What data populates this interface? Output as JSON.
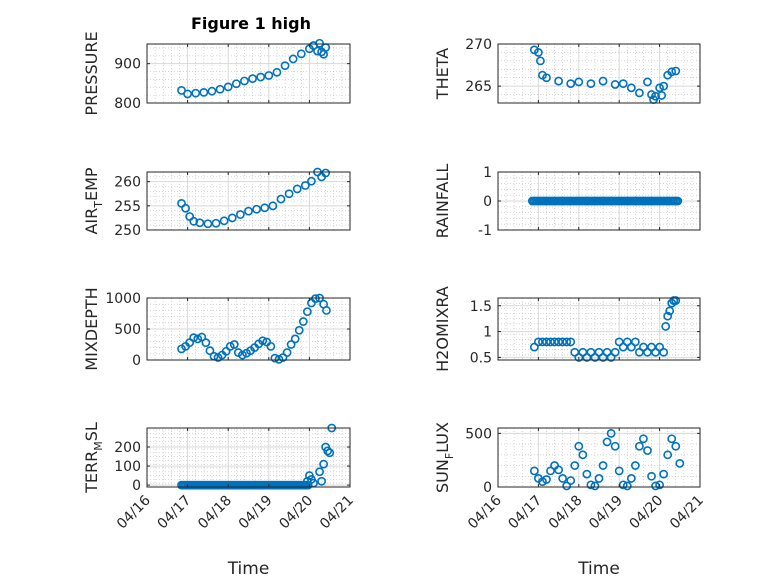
{
  "figure": {
    "title": "Figure 1 high"
  },
  "colors": {
    "marker": "#0072BD",
    "axis": "#262626",
    "grid": "#d9d9d9",
    "minor_grid": "#bdbdbd"
  },
  "chart_data": [
    {
      "type": "scatter",
      "ylabel": "PRESSURE",
      "xlim": [
        "04/16",
        "04/21"
      ],
      "ylim": [
        800,
        950
      ],
      "yticks": [
        800,
        900
      ],
      "ytick_labels": [
        "800",
        "900"
      ],
      "xticks": [
        "04/16",
        "04/17",
        "04/18",
        "04/19",
        "04/20",
        "04/21"
      ],
      "grid": true,
      "minor_grid": true,
      "show_xticklabels": false,
      "series": [
        {
          "x": [
            0.85,
            1.0,
            1.2,
            1.4,
            1.6,
            1.8,
            2.0,
            2.2,
            2.4,
            2.6,
            2.8,
            3.0,
            3.2,
            3.4,
            3.6,
            3.8,
            4.0,
            4.1,
            4.2,
            4.25,
            4.3,
            4.35,
            4.4
          ],
          "y": [
            832,
            823,
            825,
            827,
            830,
            835,
            841,
            849,
            856,
            862,
            866,
            870,
            878,
            895,
            912,
            925,
            938,
            946,
            932,
            952,
            930,
            924,
            941
          ]
        }
      ]
    },
    {
      "type": "scatter",
      "ylabel": "THETA",
      "xlim": [
        "04/16",
        "04/21"
      ],
      "ylim": [
        263,
        270
      ],
      "yticks": [
        265,
        270
      ],
      "ytick_labels": [
        "265",
        "270"
      ],
      "xticks": [
        "04/16",
        "04/17",
        "04/18",
        "04/19",
        "04/20",
        "04/21"
      ],
      "grid": true,
      "minor_grid": true,
      "show_xticklabels": false,
      "series": [
        {
          "x": [
            0.9,
            1.0,
            1.05,
            1.1,
            1.2,
            1.5,
            1.8,
            2.0,
            2.3,
            2.6,
            2.9,
            3.1,
            3.3,
            3.5,
            3.7,
            3.8,
            3.85,
            3.9,
            4.0,
            4.05,
            4.1,
            4.2,
            4.3,
            4.4
          ],
          "y": [
            269.3,
            269.0,
            268.0,
            266.3,
            266.0,
            265.6,
            265.3,
            265.5,
            265.3,
            265.6,
            265.2,
            265.3,
            264.8,
            264.2,
            265.5,
            264.0,
            263.4,
            263.8,
            264.8,
            263.9,
            265.0,
            266.3,
            266.7,
            266.8
          ]
        }
      ]
    },
    {
      "type": "scatter",
      "ylabel": "AIR_TEMP",
      "xlim": [
        "04/16",
        "04/21"
      ],
      "ylim": [
        250,
        262
      ],
      "yticks": [
        250,
        255,
        260
      ],
      "ytick_labels": [
        "250",
        "255",
        "260"
      ],
      "xticks": [
        "04/16",
        "04/17",
        "04/18",
        "04/19",
        "04/20",
        "04/21"
      ],
      "grid": true,
      "minor_grid": true,
      "show_xticklabels": false,
      "series": [
        {
          "x": [
            0.85,
            0.95,
            1.05,
            1.15,
            1.3,
            1.5,
            1.7,
            1.9,
            2.1,
            2.3,
            2.5,
            2.7,
            2.9,
            3.1,
            3.3,
            3.5,
            3.7,
            3.9,
            4.05,
            4.2,
            4.3,
            4.4
          ],
          "y": [
            255.5,
            254.5,
            252.8,
            251.8,
            251.5,
            251.3,
            251.4,
            251.9,
            252.5,
            253.2,
            253.9,
            254.3,
            254.6,
            255.0,
            256.4,
            257.5,
            258.5,
            259.2,
            260.1,
            262.0,
            261.0,
            261.8
          ]
        }
      ]
    },
    {
      "type": "scatter",
      "ylabel": "RAINFALL",
      "xlim": [
        "04/16",
        "04/21"
      ],
      "ylim": [
        -1,
        1
      ],
      "yticks": [
        -1,
        0,
        1
      ],
      "ytick_labels": [
        "-1",
        "0",
        "1"
      ],
      "xticks": [
        "04/16",
        "04/17",
        "04/18",
        "04/19",
        "04/20",
        "04/21"
      ],
      "grid": true,
      "minor_grid": true,
      "show_xticklabels": false,
      "series": [
        {
          "x_from": 0.85,
          "x_to": 4.45,
          "x_step": 0.04,
          "value": 0
        }
      ]
    },
    {
      "type": "scatter",
      "ylabel": "MIXDEPTH",
      "xlim": [
        "04/16",
        "04/21"
      ],
      "ylim": [
        0,
        1000
      ],
      "yticks": [
        0,
        500,
        1000
      ],
      "ytick_labels": [
        "0",
        "500",
        "1000"
      ],
      "xticks": [
        "04/16",
        "04/17",
        "04/18",
        "04/19",
        "04/20",
        "04/21"
      ],
      "grid": true,
      "minor_grid": true,
      "show_xticklabels": false,
      "series": [
        {
          "x": [
            0.85,
            0.95,
            1.05,
            1.15,
            1.25,
            1.35,
            1.45,
            1.55,
            1.65,
            1.75,
            1.85,
            1.95,
            2.05,
            2.15,
            2.25,
            2.35,
            2.45,
            2.55,
            2.65,
            2.75,
            2.85,
            2.95,
            3.05,
            3.15,
            3.25,
            3.35,
            3.45,
            3.55,
            3.65,
            3.75,
            3.85,
            3.95,
            4.05,
            4.15,
            4.25,
            4.35,
            4.42
          ],
          "y": [
            180,
            220,
            280,
            360,
            340,
            370,
            280,
            150,
            60,
            40,
            80,
            140,
            220,
            250,
            120,
            80,
            110,
            150,
            200,
            260,
            310,
            290,
            220,
            30,
            10,
            40,
            120,
            250,
            340,
            480,
            620,
            780,
            920,
            990,
            1000,
            900,
            800
          ]
        }
      ]
    },
    {
      "type": "scatter",
      "ylabel": "H2OMIXRA",
      "xlim": [
        "04/16",
        "04/21"
      ],
      "ylim": [
        0.45,
        1.65
      ],
      "yticks": [
        0.5,
        1,
        1.5
      ],
      "ytick_labels": [
        "0.5",
        "1",
        "1.5"
      ],
      "xticks": [
        "04/16",
        "04/17",
        "04/18",
        "04/19",
        "04/20",
        "04/21"
      ],
      "grid": true,
      "minor_grid": true,
      "show_xticklabels": false,
      "series": [
        {
          "x": [
            0.9,
            1.0,
            1.1,
            1.2,
            1.3,
            1.4,
            1.5,
            1.6,
            1.7,
            1.8,
            1.9,
            2.0,
            2.1,
            2.2,
            2.3,
            2.4,
            2.5,
            2.6,
            2.7,
            2.8,
            2.9,
            3.0,
            3.1,
            3.2,
            3.3,
            3.4,
            3.5,
            3.6,
            3.7,
            3.8,
            3.9,
            4.0,
            4.1,
            4.15,
            4.2,
            4.25,
            4.3,
            4.35,
            4.4
          ],
          "y": [
            0.7,
            0.8,
            0.8,
            0.8,
            0.8,
            0.8,
            0.8,
            0.8,
            0.8,
            0.8,
            0.6,
            0.5,
            0.6,
            0.5,
            0.6,
            0.5,
            0.6,
            0.5,
            0.6,
            0.5,
            0.6,
            0.8,
            0.7,
            0.8,
            0.7,
            0.8,
            0.6,
            0.7,
            0.6,
            0.7,
            0.6,
            0.7,
            0.6,
            1.1,
            1.3,
            1.4,
            1.55,
            1.6,
            1.6
          ]
        }
      ]
    },
    {
      "type": "scatter",
      "ylabel": "TERR_MSL",
      "xlim": [
        "04/16",
        "04/21"
      ],
      "ylim": [
        -10,
        300
      ],
      "yticks": [
        0,
        100,
        200
      ],
      "ytick_labels": [
        "0",
        "100",
        "200"
      ],
      "xticks": [
        "04/16",
        "04/17",
        "04/18",
        "04/19",
        "04/20",
        "04/21"
      ],
      "xtick_labels": [
        "04/16",
        "04/17",
        "04/18",
        "04/19",
        "04/20",
        "04/21"
      ],
      "grid": true,
      "minor_grid": true,
      "show_xticklabels": true,
      "xlabel": "Time",
      "series": [
        {
          "x_from": 0.85,
          "x_to": 4.0,
          "x_step": 0.04,
          "value": 0
        },
        {
          "x": [
            3.95,
            4.0,
            4.05,
            4.1,
            4.25,
            4.3,
            4.35,
            4.4,
            4.45,
            4.5,
            4.55
          ],
          "y": [
            20,
            50,
            30,
            10,
            70,
            20,
            110,
            200,
            180,
            170,
            300
          ]
        }
      ]
    },
    {
      "type": "scatter",
      "ylabel": "SUN_FLUX",
      "xlim": [
        "04/16",
        "04/21"
      ],
      "ylim": [
        0,
        550
      ],
      "yticks": [
        0,
        500
      ],
      "ytick_labels": [
        "0",
        "500"
      ],
      "xticks": [
        "04/16",
        "04/17",
        "04/18",
        "04/19",
        "04/20",
        "04/21"
      ],
      "xtick_labels": [
        "04/16",
        "04/17",
        "04/18",
        "04/19",
        "04/20",
        "04/21"
      ],
      "grid": true,
      "minor_grid": true,
      "show_xticklabels": true,
      "xlabel": "Time",
      "series": [
        {
          "x": [
            0.9,
            1.0,
            1.1,
            1.2,
            1.3,
            1.4,
            1.5,
            1.6,
            1.7,
            1.8,
            1.9,
            2.0,
            2.1,
            2.2,
            2.3,
            2.4,
            2.5,
            2.6,
            2.7,
            2.8,
            2.9,
            3.0,
            3.1,
            3.2,
            3.3,
            3.4,
            3.5,
            3.6,
            3.7,
            3.8,
            3.9,
            4.0,
            4.1,
            4.2,
            4.3,
            4.4,
            4.5
          ],
          "y": [
            150,
            80,
            50,
            70,
            150,
            200,
            160,
            80,
            10,
            60,
            200,
            380,
            300,
            120,
            20,
            10,
            80,
            200,
            420,
            500,
            380,
            150,
            20,
            10,
            80,
            200,
            380,
            450,
            340,
            100,
            10,
            20,
            120,
            300,
            450,
            380,
            220
          ]
        }
      ]
    }
  ]
}
